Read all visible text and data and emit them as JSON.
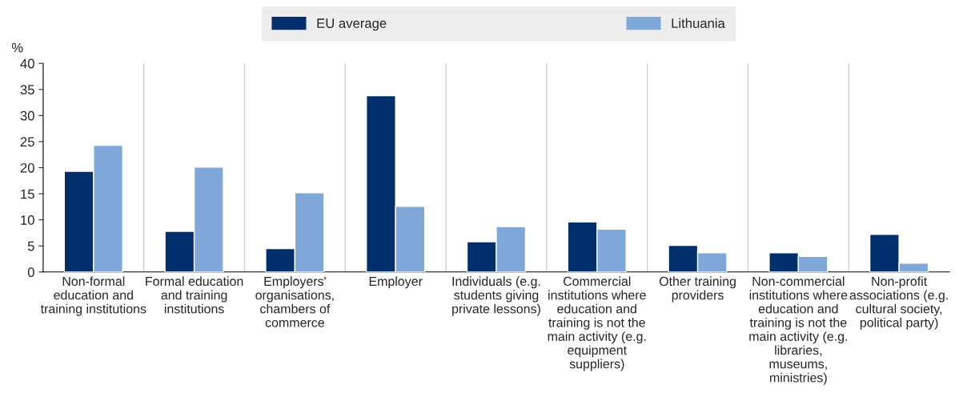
{
  "chart_data": {
    "type": "bar",
    "ylabel": "%",
    "categories": [
      "Non-formal\neducation and\ntraining institutions",
      "Formal education\nand training\ninstitutions",
      "Employers'\norganisations,\nchambers of\ncommerce",
      "Employer",
      "Individuals (e.g.\nstudents giving\nprivate lessons)",
      "Commercial\ninstitutions where\neducation and\ntraining is not the\nmain activity (e.g.\nequipment\nsuppliers)",
      "Other training\nproviders",
      "Non-commercial\ninstitutions where\neducation and\ntraining is not the\nmain activity (e.g.\nlibraries,\nmuseums,\nministries)",
      "Non-profit\nassociations (e.g.\ncultural society,\npolitical party)"
    ],
    "series": [
      {
        "name": "EU average",
        "color": "#002f6c",
        "values": [
          19.3,
          7.8,
          4.5,
          33.8,
          5.8,
          9.6,
          5.1,
          3.7,
          7.2
        ]
      },
      {
        "name": "Lithuania",
        "color": "#7fa8d9",
        "values": [
          24.3,
          20.1,
          15.2,
          12.6,
          8.7,
          8.2,
          3.7,
          3.0,
          1.7
        ]
      }
    ],
    "ylim": [
      0,
      40
    ],
    "yticks": [
      0,
      5,
      10,
      15,
      20,
      25,
      30,
      35,
      40
    ],
    "grid": "x",
    "legend": "top"
  }
}
